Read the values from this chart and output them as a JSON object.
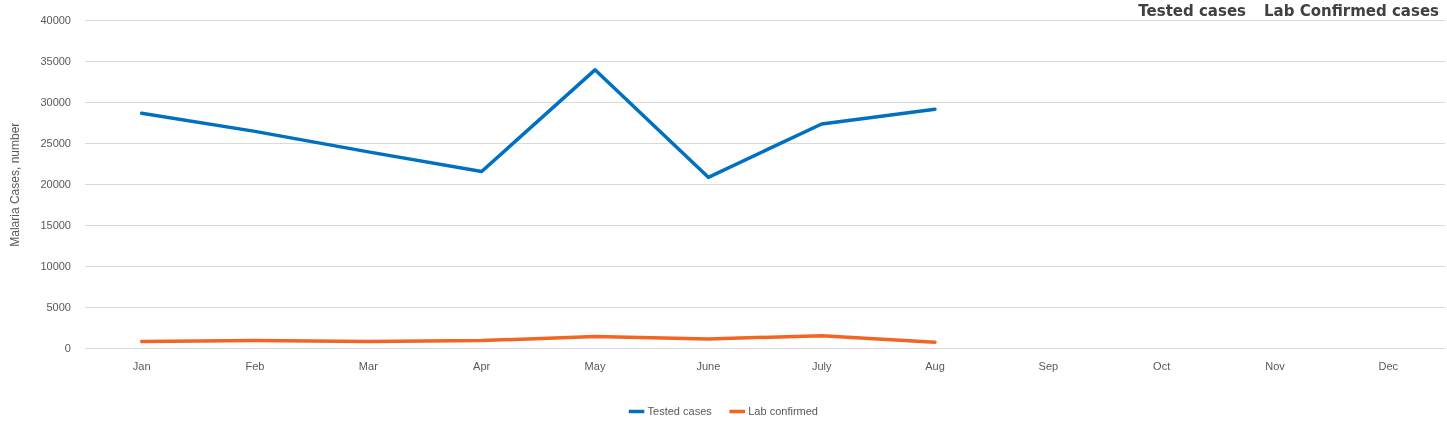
{
  "chart_data": {
    "type": "line",
    "ylabel": "Malaria Cases, number",
    "categories": [
      "Jan",
      "Feb",
      "Mar",
      "Apr",
      "May",
      "June",
      "July",
      "Aug",
      "Sep",
      "Oct",
      "Nov",
      "Dec"
    ],
    "series": [
      {
        "name": "Tested cases",
        "color": "#0070c0",
        "values": [
          28700,
          26500,
          24000,
          21600,
          34000,
          20900,
          27400,
          29200,
          null,
          null,
          null,
          null
        ]
      },
      {
        "name": "Lab confirmed",
        "color": "#f26522",
        "values": [
          900,
          1000,
          900,
          1000,
          1500,
          1200,
          1600,
          800,
          null,
          null,
          null,
          null
        ]
      }
    ],
    "ylim": [
      0,
      40000
    ],
    "yticks": [
      0,
      5000,
      10000,
      15000,
      20000,
      25000,
      30000,
      35000,
      40000
    ],
    "grid": "y",
    "legend": "bottom",
    "marker": "none",
    "line_style": "solid",
    "annotations": [
      "Tested cases",
      "Lab Confirmed cases"
    ]
  }
}
